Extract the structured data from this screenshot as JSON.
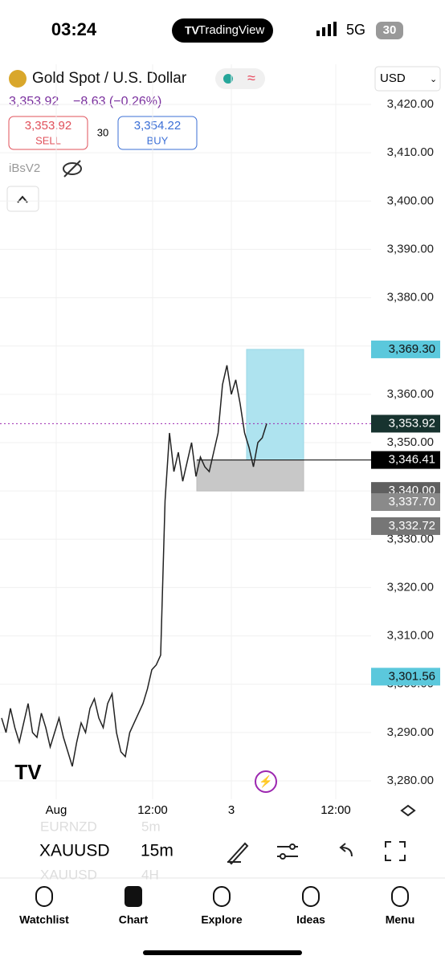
{
  "status": {
    "time": "03:24",
    "app": "TradingView",
    "network": "5G",
    "battery": "30"
  },
  "header": {
    "title": "Gold Spot / U.S. Dollar",
    "price": "3,353.92",
    "change": "−8.63 (−0.26%)",
    "currency": "USD",
    "sell": {
      "price": "3,353.92",
      "label": "SELL"
    },
    "spread": "30",
    "buy": {
      "price": "3,354.22",
      "label": "BUY"
    },
    "indicator": "iBsV2"
  },
  "chart_data": {
    "type": "line",
    "values": [
      3293,
      3290,
      3295,
      3291,
      3288,
      3292,
      3296,
      3290,
      3289,
      3294,
      3291,
      3287,
      3290,
      3293,
      3289,
      3286,
      3283,
      3288,
      3292,
      3290,
      3295,
      3297,
      3293,
      3291,
      3296,
      3298,
      3290,
      3286,
      3285,
      3290,
      3292,
      3294,
      3296,
      3299,
      3303,
      3304,
      3306,
      3338,
      3352,
      3344,
      3348,
      3342,
      3346,
      3350,
      3343,
      3347,
      3345,
      3344,
      3348,
      3352,
      3362,
      3366,
      3360,
      3363,
      3358,
      3352,
      3349,
      3345,
      3350,
      3351,
      3353.92
    ],
    "color": "#222222",
    "ylim": [
      3280,
      3420
    ],
    "yticks": [
      {
        "value": 3280,
        "label": "3,280.00"
      },
      {
        "value": 3290,
        "label": "3,290.00"
      },
      {
        "value": 3300,
        "label": "3,300.00"
      },
      {
        "value": 3310,
        "label": "3,310.00"
      },
      {
        "value": 3320,
        "label": "3,320.00"
      },
      {
        "value": 3330,
        "label": "3,330.00"
      },
      {
        "value": 3340,
        "label": "3,340.00"
      },
      {
        "value": 3350,
        "label": "3,350.00"
      },
      {
        "value": 3360,
        "label": "3,360.00"
      },
      {
        "value": 3370,
        "label": "3,370.00"
      },
      {
        "value": 3380,
        "label": "3,380.00"
      },
      {
        "value": 3390,
        "label": "3,390.00"
      },
      {
        "value": 3400,
        "label": "3,400.00"
      },
      {
        "value": 3410,
        "label": "3,410.00"
      },
      {
        "value": 3420,
        "label": "3,420.00"
      }
    ],
    "time_labels": [
      "Aug",
      "12:00",
      "3",
      "12:00"
    ],
    "price_labels": [
      {
        "value": 3369.3,
        "label": "3,369.30",
        "color": "#5bc8dc"
      },
      {
        "value": 3353.92,
        "label": "3,353.92",
        "color": "#17332f"
      },
      {
        "value": 3346.41,
        "label": "3,346.41",
        "color": "#000000"
      },
      {
        "value": 3340.0,
        "label": "3,340.00",
        "color": "#5f5f5f"
      },
      {
        "value": 3337.7,
        "label": "3,337.70",
        "color": "#8a8a8a"
      },
      {
        "value": 3332.72,
        "label": "3,332.72",
        "color": "#767676"
      },
      {
        "value": 3301.56,
        "label": "3,301.56",
        "color": "#5bc8dc"
      }
    ]
  },
  "toolbar": {
    "symbol": "XAUUSD",
    "interval": "15m",
    "ghost": [
      "EURNZD",
      "5m",
      "XAUUSD",
      "4H"
    ]
  },
  "tabs": [
    "Watchlist",
    "Chart",
    "Explore",
    "Ideas",
    "Menu"
  ]
}
